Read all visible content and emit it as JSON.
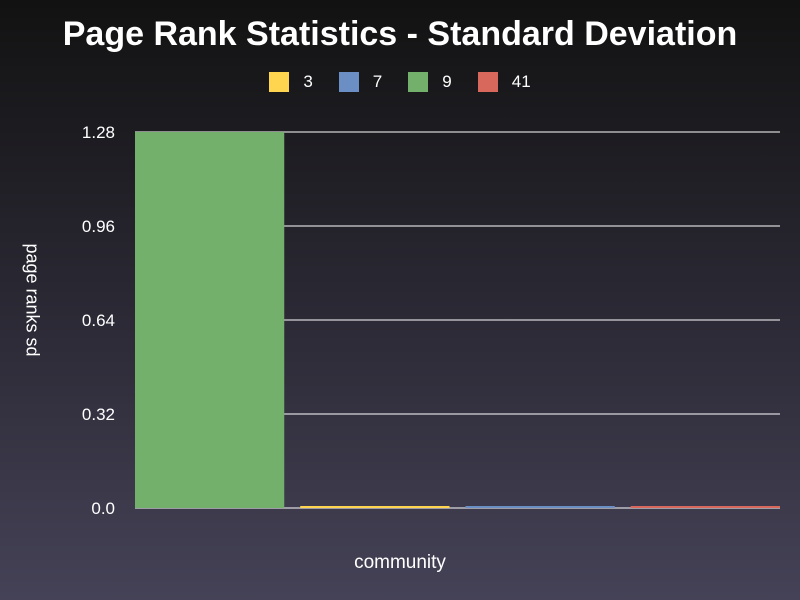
{
  "chart_data": {
    "type": "bar",
    "title": "Page Rank Statistics - Standard Deviation",
    "xlabel": "community",
    "ylabel": "page ranks sd",
    "ylim": [
      0,
      1.28
    ],
    "yticks": [
      "0.0",
      "0.32",
      "0.64",
      "0.96",
      "1.28"
    ],
    "grid": true,
    "legend_position": "top-center",
    "series": [
      {
        "name": "3",
        "color": "#ffd54f",
        "value": 0.004
      },
      {
        "name": "7",
        "color": "#6b8fc4",
        "value": 0.002
      },
      {
        "name": "9",
        "color": "#72b06c",
        "value": 1.28
      },
      {
        "name": "41",
        "color": "#d9685c",
        "value": 0.003
      }
    ],
    "bar_order": [
      "9",
      "3",
      "7",
      "41"
    ]
  }
}
